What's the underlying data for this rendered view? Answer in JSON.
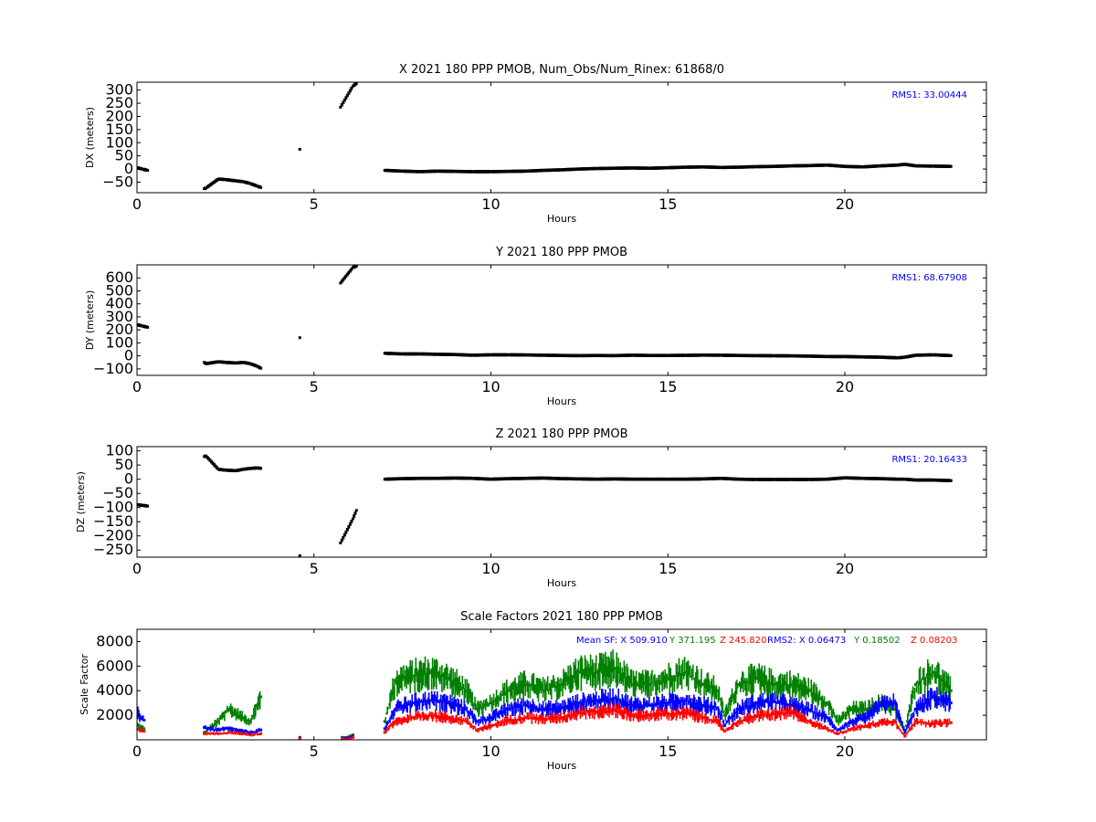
{
  "chart_data": [
    {
      "type": "scatter",
      "title": "X 2021 180 PPP  PMOB, Num_Obs/Num_Rinex: 61868/0",
      "xlabel": "Hours",
      "ylabel": "DX (meters)",
      "xlim": [
        0,
        24
      ],
      "ylim": [
        -90,
        330
      ],
      "xticks": [
        0,
        5,
        10,
        15,
        20
      ],
      "yticks": [
        -50,
        0,
        50,
        100,
        150,
        200,
        250,
        300
      ],
      "annotations": [
        {
          "text": "RMS1: 33.00444",
          "color": "#0000ff",
          "pos": "top-right"
        }
      ],
      "series": [
        {
          "color": "#000000",
          "x": [
            0.0,
            0.15,
            0.3,
            1.9,
            1.95,
            2.3,
            2.5,
            2.8,
            3.0,
            3.2,
            3.4,
            3.5,
            4.6,
            5.75,
            6.1,
            6.2,
            7.0,
            7.5,
            8.0,
            8.5,
            9.0,
            9.5,
            10.0,
            10.5,
            11.0,
            11.5,
            12.0,
            12.5,
            13.0,
            13.5,
            14.0,
            14.5,
            15.0,
            15.5,
            16.0,
            16.5,
            17.0,
            17.5,
            18.0,
            18.5,
            19.0,
            19.5,
            20.0,
            20.5,
            21.0,
            21.5,
            21.7,
            22.0,
            22.5,
            23.0
          ],
          "y": [
            5,
            0,
            -5,
            -75,
            -72,
            -38,
            -40,
            -45,
            -48,
            -55,
            -65,
            -70,
            75,
            235,
            315,
            325,
            -5,
            -8,
            -10,
            -8,
            -9,
            -10,
            -10,
            -9,
            -8,
            -5,
            -3,
            0,
            2,
            3,
            4,
            3,
            5,
            7,
            8,
            6,
            7,
            9,
            10,
            12,
            13,
            15,
            10,
            8,
            12,
            15,
            18,
            12,
            11,
            10
          ]
        }
      ]
    },
    {
      "type": "scatter",
      "title": "Y 2021 180 PPP  PMOB",
      "xlabel": "Hours",
      "ylabel": "DY (meters)",
      "xlim": [
        0,
        24
      ],
      "ylim": [
        -150,
        700
      ],
      "xticks": [
        0,
        5,
        10,
        15,
        20
      ],
      "yticks": [
        -100,
        0,
        100,
        200,
        300,
        400,
        500,
        600
      ],
      "annotations": [
        {
          "text": "RMS1: 68.67908",
          "color": "#0000ff",
          "pos": "top-right"
        }
      ],
      "series": [
        {
          "color": "#000000",
          "x": [
            0.0,
            0.15,
            0.3,
            1.9,
            1.95,
            2.3,
            2.5,
            2.8,
            3.0,
            3.2,
            3.4,
            3.5,
            4.6,
            5.75,
            6.1,
            6.2,
            7.0,
            7.5,
            8.0,
            8.5,
            9.0,
            9.5,
            10.0,
            10.5,
            11.0,
            11.5,
            12.0,
            12.5,
            13.0,
            13.5,
            14.0,
            14.5,
            15.0,
            15.5,
            16.0,
            16.5,
            17.0,
            17.5,
            18.0,
            18.5,
            19.0,
            19.5,
            20.0,
            20.5,
            21.0,
            21.5,
            21.7,
            22.0,
            22.5,
            23.0
          ],
          "y": [
            240,
            230,
            220,
            -50,
            -60,
            -45,
            -50,
            -55,
            -50,
            -60,
            -80,
            -95,
            140,
            560,
            680,
            690,
            20,
            15,
            15,
            12,
            10,
            5,
            8,
            8,
            7,
            5,
            3,
            2,
            3,
            2,
            5,
            3,
            3,
            4,
            6,
            5,
            3,
            2,
            1,
            0,
            -2,
            -5,
            -5,
            -8,
            -10,
            -15,
            -10,
            5,
            8,
            2
          ]
        }
      ]
    },
    {
      "type": "scatter",
      "title": "Z 2021 180 PPP  PMOB",
      "xlabel": "Hours",
      "ylabel": "DZ (meters)",
      "xlim": [
        0,
        24
      ],
      "ylim": [
        -275,
        115
      ],
      "xticks": [
        0,
        5,
        10,
        15,
        20
      ],
      "yticks": [
        -250,
        -200,
        -150,
        -100,
        -50,
        0,
        50,
        100
      ],
      "annotations": [
        {
          "text": "RMS1: 20.16433",
          "color": "#0000ff",
          "pos": "top-right"
        }
      ],
      "series": [
        {
          "color": "#000000",
          "x": [
            0.0,
            0.15,
            0.3,
            1.9,
            1.95,
            2.3,
            2.5,
            2.8,
            3.0,
            3.2,
            3.4,
            3.5,
            4.6,
            5.75,
            6.1,
            6.2,
            7.0,
            7.5,
            8.0,
            8.5,
            9.0,
            9.5,
            10.0,
            10.5,
            11.0,
            11.5,
            12.0,
            12.5,
            13.0,
            13.5,
            14.0,
            14.5,
            15.0,
            15.5,
            16.0,
            16.5,
            17.0,
            17.5,
            18.0,
            18.5,
            19.0,
            19.5,
            20.0,
            20.5,
            21.0,
            21.5,
            21.7,
            22.0,
            22.5,
            23.0
          ],
          "y": [
            -90,
            -92,
            -95,
            80,
            82,
            35,
            32,
            30,
            35,
            38,
            40,
            38,
            -270,
            -225,
            -140,
            -110,
            0,
            2,
            3,
            3,
            4,
            3,
            0,
            2,
            3,
            4,
            2,
            1,
            0,
            1,
            0,
            0,
            0,
            0,
            1,
            3,
            0,
            -1,
            -1,
            -1,
            -1,
            0,
            5,
            3,
            2,
            0,
            0,
            -3,
            -3,
            -5
          ]
        }
      ]
    },
    {
      "type": "scatter",
      "title": "Scale Factors 2021 180 PPP  PMOB",
      "xlabel": "Hours",
      "ylabel": "Scale Factor",
      "xlim": [
        0,
        24
      ],
      "ylim": [
        0,
        9000
      ],
      "xticks": [
        0,
        5,
        10,
        15,
        20
      ],
      "yticks": [
        2000,
        4000,
        6000,
        8000
      ],
      "annotations": [
        {
          "text": "Mean SF: X 509.910",
          "color": "#0000ff"
        },
        {
          "text": "Y 371.195",
          "color": "#008000"
        },
        {
          "text": "Z 245.820",
          "color": "#ff0000"
        },
        {
          "text": "RMS2: X  0.06473",
          "color": "#0000ff"
        },
        {
          "text": "Y  0.18502",
          "color": "#008000"
        },
        {
          "text": "Z  0.08203",
          "color": "#ff0000"
        }
      ],
      "series": [
        {
          "color": "#008000",
          "x": [
            0.0,
            0.2,
            1.9,
            2.3,
            2.6,
            3.0,
            3.2,
            3.5,
            4.6,
            5.8,
            6.1,
            7.0,
            7.3,
            7.8,
            8.3,
            8.8,
            9.3,
            9.6,
            10.0,
            10.5,
            11.0,
            11.5,
            12.0,
            12.5,
            13.0,
            13.5,
            14.0,
            14.5,
            15.0,
            15.5,
            16.0,
            16.4,
            16.6,
            17.0,
            17.5,
            18.0,
            18.5,
            19.0,
            19.5,
            19.8,
            20.2,
            20.6,
            21.0,
            21.4,
            21.7,
            22.0,
            22.5,
            23.0
          ],
          "y": [
            1200,
            900,
            600,
            1500,
            2500,
            1800,
            1500,
            3500,
            200,
            200,
            400,
            1500,
            4800,
            5200,
            5500,
            5000,
            4000,
            2500,
            3000,
            4000,
            4500,
            4000,
            4500,
            5500,
            5500,
            5800,
            4500,
            4500,
            5000,
            5500,
            4500,
            4000,
            2000,
            4500,
            5000,
            4500,
            4500,
            4000,
            3000,
            1500,
            2500,
            2500,
            3000,
            2500,
            800,
            4500,
            5500,
            4000
          ]
        },
        {
          "color": "#0000ff",
          "x": [
            0.0,
            0.2,
            1.9,
            2.3,
            2.6,
            3.0,
            3.2,
            3.5,
            4.6,
            5.8,
            6.1,
            7.0,
            7.3,
            7.8,
            8.3,
            8.8,
            9.3,
            9.6,
            10.0,
            10.5,
            11.0,
            11.5,
            12.0,
            12.5,
            13.0,
            13.5,
            14.0,
            14.5,
            15.0,
            15.5,
            16.0,
            16.4,
            16.6,
            17.0,
            17.5,
            18.0,
            18.5,
            19.0,
            19.5,
            19.8,
            20.2,
            20.6,
            21.0,
            21.4,
            21.7,
            22.0,
            22.5,
            23.0
          ],
          "y": [
            2200,
            1600,
            1000,
            800,
            900,
            700,
            600,
            800,
            150,
            150,
            300,
            900,
            2500,
            3000,
            3200,
            3000,
            2500,
            1500,
            1800,
            2500,
            2800,
            2500,
            2600,
            3000,
            3200,
            3400,
            2800,
            2800,
            3000,
            3200,
            2800,
            2600,
            1200,
            2500,
            3000,
            3100,
            2800,
            2400,
            1800,
            800,
            1500,
            1800,
            2800,
            3000,
            600,
            2500,
            3500,
            3000
          ]
        },
        {
          "color": "#ff0000",
          "x": [
            0.0,
            0.2,
            1.9,
            2.3,
            2.6,
            3.0,
            3.2,
            3.5,
            4.6,
            5.8,
            6.1,
            7.0,
            7.3,
            7.8,
            8.3,
            8.8,
            9.3,
            9.6,
            10.0,
            10.5,
            11.0,
            11.5,
            12.0,
            12.5,
            13.0,
            13.5,
            14.0,
            14.5,
            15.0,
            15.5,
            16.0,
            16.4,
            16.6,
            17.0,
            17.5,
            18.0,
            18.5,
            19.0,
            19.5,
            19.8,
            20.2,
            20.6,
            21.0,
            21.4,
            21.7,
            22.0,
            22.5,
            23.0
          ],
          "y": [
            900,
            700,
            500,
            500,
            600,
            500,
            400,
            500,
            100,
            100,
            200,
            600,
            1500,
            1800,
            2000,
            1800,
            1500,
            800,
            1100,
            1600,
            1800,
            1700,
            1800,
            2200,
            2300,
            2400,
            2000,
            2000,
            2100,
            2200,
            1800,
            1500,
            700,
            1500,
            1900,
            2100,
            2200,
            1500,
            900,
            500,
            900,
            1100,
            1400,
            1500,
            300,
            1500,
            1300,
            1400
          ]
        }
      ]
    }
  ]
}
